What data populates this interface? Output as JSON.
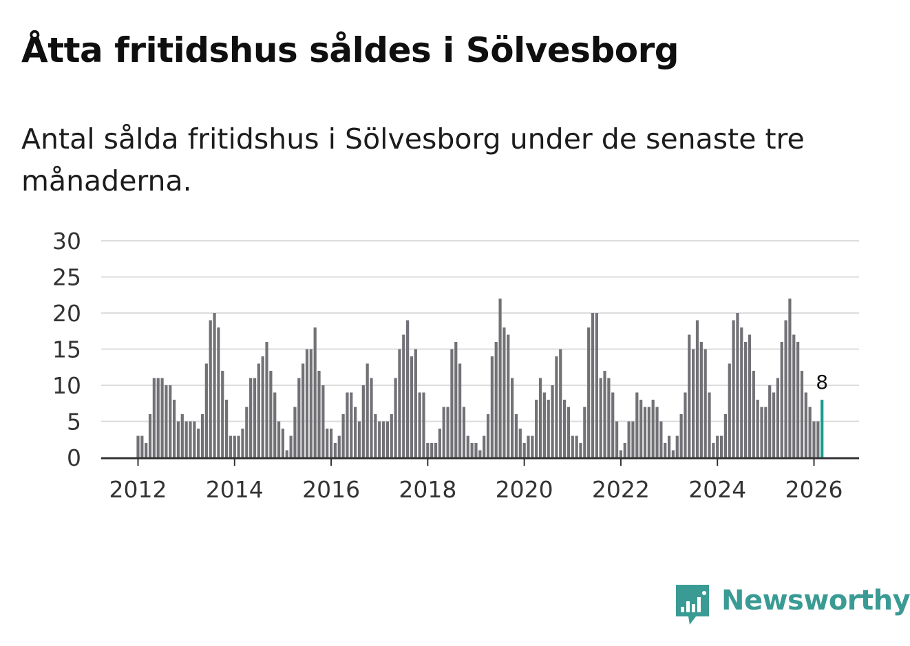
{
  "title": "Åtta fritidshus såldes i Sölvesborg",
  "subtitle": "Antal sålda fritidshus i Sölvesborg under de senaste tre månaderna.",
  "brand": {
    "name": "Newsworthy",
    "icon": "newsworthy-logo-icon",
    "color": "#3a9a94"
  },
  "chart_data": {
    "type": "bar",
    "title": "Åtta fritidshus såldes i Sölvesborg",
    "subtitle": "Antal sålda fritidshus i Sölvesborg under de senaste tre månaderna.",
    "xlabel": "",
    "ylabel": "",
    "ylim": [
      0,
      30
    ],
    "yticks": [
      0,
      5,
      10,
      15,
      20,
      25,
      30
    ],
    "xticks": [
      "2012",
      "2014",
      "2016",
      "2018",
      "2020",
      "2022",
      "2024",
      "2026"
    ],
    "grid": true,
    "bar_color": "#727176",
    "highlight_color": "#1a9b8f",
    "start_month": "2012-01",
    "highlight_label": "8",
    "values": [
      3,
      3,
      2,
      6,
      11,
      11,
      11,
      10,
      10,
      8,
      5,
      6,
      5,
      5,
      5,
      4,
      6,
      13,
      19,
      20,
      18,
      12,
      8,
      3,
      3,
      3,
      4,
      7,
      11,
      11,
      13,
      14,
      16,
      12,
      9,
      5,
      4,
      1,
      3,
      7,
      11,
      13,
      15,
      15,
      18,
      12,
      10,
      4,
      4,
      2,
      3,
      6,
      9,
      9,
      7,
      5,
      10,
      13,
      11,
      6,
      5,
      5,
      5,
      6,
      11,
      15,
      17,
      19,
      14,
      15,
      9,
      9,
      2,
      2,
      2,
      4,
      7,
      7,
      15,
      16,
      13,
      7,
      3,
      2,
      2,
      1,
      3,
      6,
      14,
      16,
      22,
      18,
      17,
      11,
      6,
      4,
      2,
      3,
      3,
      8,
      11,
      9,
      8,
      10,
      14,
      15,
      8,
      7,
      3,
      3,
      2,
      7,
      18,
      20,
      20,
      11,
      12,
      11,
      9,
      5,
      1,
      2,
      5,
      5,
      9,
      8,
      7,
      7,
      8,
      7,
      5,
      2,
      3,
      1,
      3,
      6,
      9,
      17,
      15,
      19,
      16,
      15,
      9,
      2,
      3,
      3,
      6,
      13,
      19,
      20,
      18,
      16,
      17,
      12,
      8,
      7,
      7,
      10,
      9,
      11,
      16,
      19,
      22,
      17,
      16,
      12,
      9,
      7,
      5,
      5,
      8
    ]
  }
}
